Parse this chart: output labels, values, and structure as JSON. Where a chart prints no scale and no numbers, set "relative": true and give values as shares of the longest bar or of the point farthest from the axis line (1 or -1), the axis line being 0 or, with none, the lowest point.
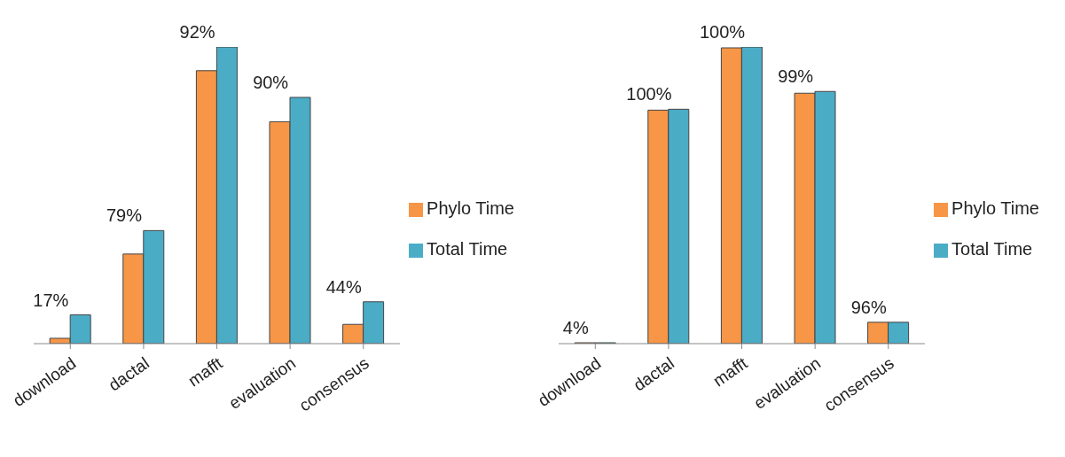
{
  "chart_data": [
    {
      "type": "bar",
      "relative": true,
      "categories": [
        "download",
        "dactal",
        "mafft",
        "evaluation",
        "consensus"
      ],
      "series": [
        {
          "name": "Phylo Time",
          "color": "#f79646",
          "values": [
            0.018,
            0.302,
            0.92,
            0.748,
            0.065
          ]
        },
        {
          "name": "Total Time",
          "color": "#4bacc6",
          "values": [
            0.097,
            0.381,
            1,
            0.83,
            0.141
          ]
        }
      ],
      "annotations": [
        {
          "text": "17%",
          "x": "download",
          "y": 0.097
        },
        {
          "text": "79%",
          "x": "dactal",
          "y": 0.381
        },
        {
          "text": "92%",
          "x": "mafft",
          "y": 1
        },
        {
          "text": "90%",
          "x": "evaluation",
          "y": 0.83
        },
        {
          "text": "44%",
          "x": "consensus",
          "y": 0.141
        }
      ],
      "legend": "right",
      "grid": false
    },
    {
      "type": "bar",
      "relative": true,
      "categories": [
        "download",
        "dactal",
        "mafft",
        "evaluation",
        "consensus"
      ],
      "series": [
        {
          "name": "Phylo Time",
          "color": "#f79646",
          "values": [
            0.003,
            0.787,
            0.997,
            0.844,
            0.072
          ]
        },
        {
          "name": "Total Time",
          "color": "#4bacc6",
          "values": [
            0.003,
            0.79,
            1,
            0.85,
            0.072
          ]
        }
      ],
      "annotations": [
        {
          "text": "4%",
          "x": "download",
          "y": 0.003
        },
        {
          "text": "100%",
          "x": "dactal",
          "y": 0.79
        },
        {
          "text": "100%",
          "x": "mafft",
          "y": 1
        },
        {
          "text": "99%",
          "x": "evaluation",
          "y": 0.85
        },
        {
          "text": "96%",
          "x": "consensus",
          "y": 0.072
        }
      ],
      "legend": "right",
      "grid": false
    }
  ]
}
